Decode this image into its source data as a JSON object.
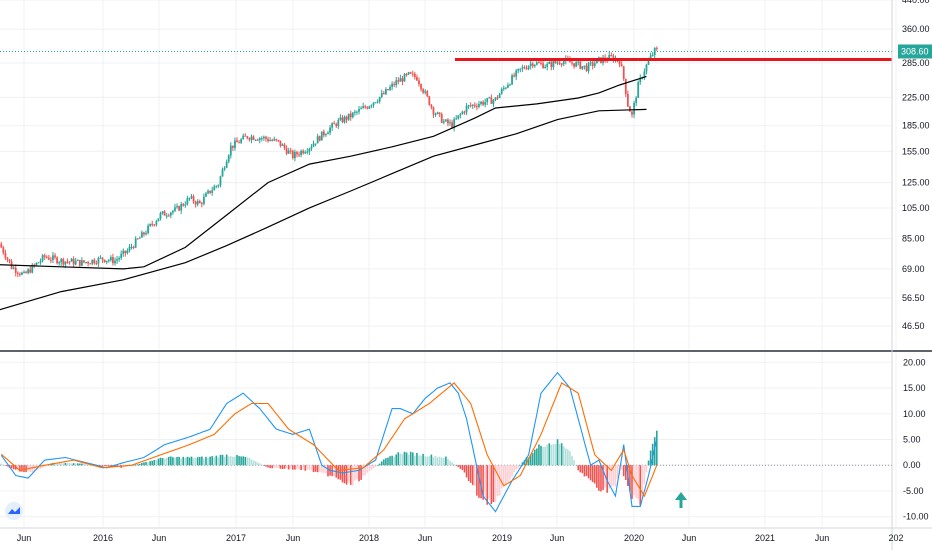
{
  "chart_data": [
    {
      "type": "candlestick",
      "title": "",
      "scale": "log",
      "ylim": [
        40,
        440
      ],
      "y_ticks": [
        "440.00",
        "360.00",
        "285.00",
        "225.00",
        "185.00",
        "155.00",
        "125.00",
        "105.00",
        "85.00",
        "69.00",
        "56.50",
        "46.50"
      ],
      "x_ticks": [
        "Jun",
        "2016",
        "Jun",
        "2017",
        "Jun",
        "2018",
        "Jun",
        "2019",
        "Jun",
        "2020",
        "Jun",
        "2021",
        "Jun",
        "202"
      ],
      "last_price": "308.60",
      "last_price_value": 308.6,
      "resistance_level": 292,
      "colors": {
        "up": "#26a69a",
        "down": "#ef5350",
        "ma": "#000000",
        "resistance": "#e8161c",
        "last_price_line": "#26a69a"
      },
      "weeks": 290,
      "ma_fast": [
        [
          0,
          71
        ],
        [
          30,
          70
        ],
        [
          60,
          69
        ],
        [
          70,
          70
        ],
        [
          90,
          80
        ],
        [
          110,
          100
        ],
        [
          130,
          125
        ],
        [
          150,
          142
        ],
        [
          170,
          150
        ],
        [
          190,
          160
        ],
        [
          210,
          172
        ],
        [
          230,
          195
        ],
        [
          240,
          209
        ],
        [
          260,
          215
        ],
        [
          280,
          224
        ],
        [
          290,
          232
        ],
        [
          300,
          245
        ],
        [
          313,
          260
        ]
      ],
      "ma_slow": [
        [
          0,
          52
        ],
        [
          30,
          59
        ],
        [
          60,
          64
        ],
        [
          90,
          72
        ],
        [
          110,
          81
        ],
        [
          130,
          92
        ],
        [
          150,
          105
        ],
        [
          170,
          118
        ],
        [
          190,
          133
        ],
        [
          210,
          150
        ],
        [
          230,
          162
        ],
        [
          250,
          175
        ],
        [
          270,
          193
        ],
        [
          290,
          205
        ],
        [
          313,
          207
        ]
      ],
      "close_anchors": [
        [
          0,
          82
        ],
        [
          6,
          70
        ],
        [
          12,
          66
        ],
        [
          22,
          75
        ],
        [
          30,
          73
        ],
        [
          40,
          72
        ],
        [
          50,
          74
        ],
        [
          56,
          73
        ],
        [
          62,
          78
        ],
        [
          70,
          88
        ],
        [
          78,
          100
        ],
        [
          86,
          104
        ],
        [
          92,
          112
        ],
        [
          97,
          108
        ],
        [
          102,
          118
        ],
        [
          106,
          124
        ],
        [
          112,
          160
        ],
        [
          120,
          172
        ],
        [
          128,
          170
        ],
        [
          135,
          165
        ],
        [
          142,
          150
        ],
        [
          150,
          160
        ],
        [
          158,
          178
        ],
        [
          164,
          190
        ],
        [
          170,
          198
        ],
        [
          178,
          212
        ],
        [
          186,
          230
        ],
        [
          192,
          250
        ],
        [
          198,
          262
        ],
        [
          202,
          258
        ],
        [
          206,
          230
        ],
        [
          210,
          205
        ],
        [
          215,
          190
        ],
        [
          219,
          186
        ],
        [
          226,
          210
        ],
        [
          232,
          216
        ],
        [
          240,
          222
        ],
        [
          246,
          248
        ],
        [
          252,
          272
        ],
        [
          258,
          286
        ],
        [
          265,
          280
        ],
        [
          272,
          290
        ],
        [
          278,
          284
        ],
        [
          284,
          276
        ],
        [
          290,
          290
        ],
        [
          296,
          296
        ],
        [
          300,
          290
        ],
        [
          302,
          256
        ],
        [
          304,
          214
        ],
        [
          306,
          198
        ],
        [
          309,
          244
        ],
        [
          312,
          272
        ],
        [
          315,
          296
        ],
        [
          317,
          310
        ]
      ]
    },
    {
      "type": "macd",
      "ylim": [
        -12,
        22
      ],
      "y_ticks": [
        "20.00",
        "15.00",
        "10.00",
        "5.00",
        "0.00",
        "-5.00",
        "-10.00"
      ],
      "colors": {
        "macd": "#2196f3",
        "signal": "#ff6d00",
        "hist_up": "#26a69a",
        "hist_down": "#ef5350"
      },
      "macd": [
        [
          0,
          2.5
        ],
        [
          8,
          -2
        ],
        [
          14,
          -2.5
        ],
        [
          22,
          1
        ],
        [
          32,
          1.5
        ],
        [
          42,
          0.5
        ],
        [
          52,
          -0.5
        ],
        [
          60,
          0.5
        ],
        [
          70,
          1.5
        ],
        [
          80,
          4
        ],
        [
          92,
          5.5
        ],
        [
          102,
          7
        ],
        [
          110,
          12
        ],
        [
          118,
          14
        ],
        [
          126,
          11
        ],
        [
          134,
          7
        ],
        [
          142,
          6
        ],
        [
          150,
          7
        ],
        [
          156,
          0
        ],
        [
          160,
          -1
        ],
        [
          166,
          -1.5
        ],
        [
          174,
          -1
        ],
        [
          182,
          1
        ],
        [
          190,
          11
        ],
        [
          194,
          11
        ],
        [
          200,
          10
        ],
        [
          206,
          13
        ],
        [
          212,
          15
        ],
        [
          218,
          16
        ],
        [
          222,
          14
        ],
        [
          226,
          9
        ],
        [
          234,
          -6
        ],
        [
          240,
          -9
        ],
        [
          248,
          -3
        ],
        [
          256,
          2
        ],
        [
          262,
          14
        ],
        [
          270,
          18
        ],
        [
          276,
          15
        ],
        [
          282,
          6
        ],
        [
          286,
          0
        ],
        [
          290,
          1
        ],
        [
          294,
          -3
        ],
        [
          298,
          -6
        ],
        [
          302,
          4
        ],
        [
          304,
          -2
        ],
        [
          306,
          -8
        ],
        [
          310,
          -8
        ],
        [
          314,
          -2
        ],
        [
          318,
          5
        ]
      ],
      "signal": [
        [
          0,
          2.5
        ],
        [
          10,
          -1
        ],
        [
          22,
          0
        ],
        [
          36,
          1
        ],
        [
          50,
          -0.5
        ],
        [
          64,
          0
        ],
        [
          78,
          2
        ],
        [
          92,
          4
        ],
        [
          104,
          6
        ],
        [
          114,
          10
        ],
        [
          122,
          12
        ],
        [
          130,
          12
        ],
        [
          140,
          7
        ],
        [
          152,
          4
        ],
        [
          164,
          -1
        ],
        [
          176,
          -0.5
        ],
        [
          186,
          3
        ],
        [
          196,
          9
        ],
        [
          208,
          12
        ],
        [
          220,
          16
        ],
        [
          228,
          12
        ],
        [
          236,
          2
        ],
        [
          244,
          -4
        ],
        [
          252,
          -2
        ],
        [
          262,
          6
        ],
        [
          272,
          16
        ],
        [
          280,
          14
        ],
        [
          288,
          2
        ],
        [
          296,
          -1
        ],
        [
          302,
          3
        ],
        [
          306,
          -2
        ],
        [
          312,
          -6
        ],
        [
          318,
          0
        ]
      ],
      "hist": [
        [
          0,
          0.5
        ],
        [
          8,
          -1
        ],
        [
          16,
          -1.5
        ],
        [
          26,
          0.5
        ],
        [
          40,
          0.3
        ],
        [
          60,
          -0.5
        ],
        [
          70,
          0.5
        ],
        [
          80,
          1.5
        ],
        [
          100,
          1.5
        ],
        [
          110,
          2
        ],
        [
          120,
          1.5
        ],
        [
          130,
          -0.5
        ],
        [
          150,
          -1
        ],
        [
          160,
          -2
        ],
        [
          170,
          -4
        ],
        [
          180,
          -1
        ],
        [
          186,
          1
        ],
        [
          194,
          2.5
        ],
        [
          206,
          2
        ],
        [
          216,
          1.5
        ],
        [
          224,
          -1
        ],
        [
          232,
          -6
        ],
        [
          240,
          -7.5
        ],
        [
          246,
          -3
        ],
        [
          254,
          1
        ],
        [
          262,
          4
        ],
        [
          270,
          4.5
        ],
        [
          276,
          3
        ],
        [
          280,
          -1
        ],
        [
          286,
          -3
        ],
        [
          292,
          -5
        ],
        [
          298,
          -4
        ],
        [
          301,
          -1
        ],
        [
          303,
          -3
        ],
        [
          306,
          -6
        ],
        [
          310,
          -8
        ],
        [
          314,
          1
        ],
        [
          318,
          7
        ]
      ],
      "arrow_color": "#26a69a"
    }
  ]
}
